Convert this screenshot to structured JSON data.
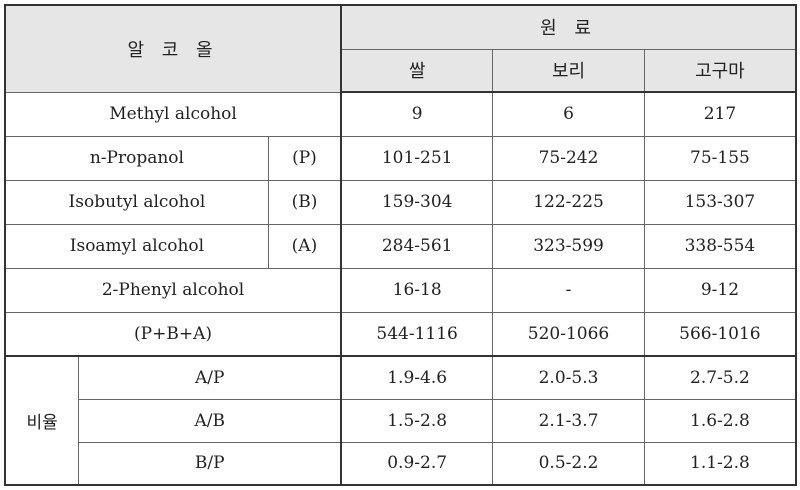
{
  "header": {
    "alcohol": "알 코 올",
    "material": "원 료",
    "materials": [
      "쌀",
      "보리",
      "고구마"
    ]
  },
  "rows": [
    {
      "name": "Methyl alcohol",
      "code": "",
      "values": [
        "9",
        "6",
        "217"
      ]
    },
    {
      "name": "n-Propanol",
      "code": "(P)",
      "values": [
        "101-251",
        "75-242",
        "75-155"
      ]
    },
    {
      "name": "Isobutyl alcohol",
      "code": "(B)",
      "values": [
        "159-304",
        "122-225",
        "153-307"
      ]
    },
    {
      "name": "Isoamyl alcohol",
      "code": "(A)",
      "values": [
        "284-561",
        "323-599",
        "338-554"
      ]
    },
    {
      "name": "2-Phenyl alcohol",
      "code": "",
      "values": [
        "16-18",
        "-",
        "9-12"
      ]
    },
    {
      "name": "(P+B+A)",
      "code": "",
      "values": [
        "544-1116",
        "520-1066",
        "566-1016"
      ]
    }
  ],
  "ratio": {
    "label": "비율",
    "rows": [
      {
        "name": "A/P",
        "values": [
          "1.9-4.6",
          "2.0-5.3",
          "2.7-5.2"
        ]
      },
      {
        "name": "A/B",
        "values": [
          "1.5-2.8",
          "2.1-3.7",
          "1.6-2.8"
        ]
      },
      {
        "name": "B/P",
        "values": [
          "0.9-2.7",
          "0.5-2.2",
          "1.1-2.8"
        ]
      }
    ]
  }
}
